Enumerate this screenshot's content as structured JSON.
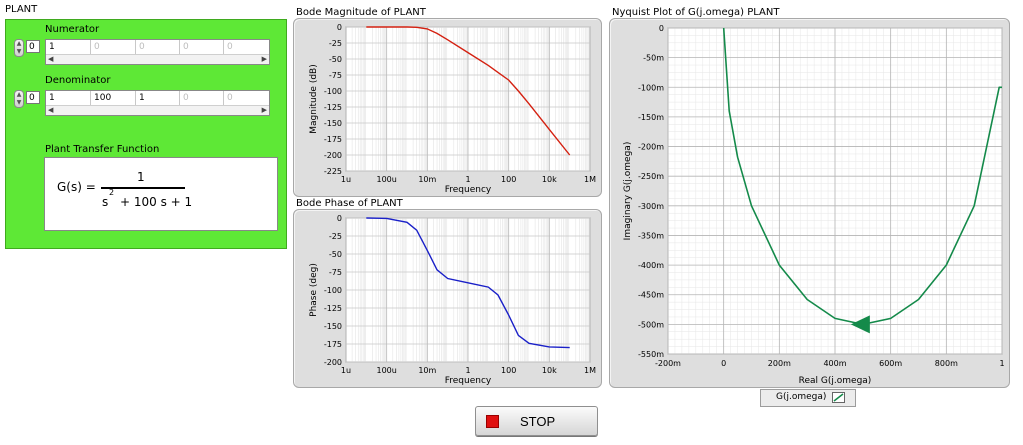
{
  "plant": {
    "title": "PLANT",
    "numerator_label": "Numerator",
    "numerator_index": "0",
    "numerator_values": [
      "1",
      "0",
      "0",
      "0",
      "0"
    ],
    "denominator_label": "Denominator",
    "denominator_index": "0",
    "denominator_values": [
      "1",
      "100",
      "1",
      "0",
      "0"
    ],
    "tf_label": "Plant Transfer Function",
    "tf_lhs": "G(s) =",
    "tf_numerator": "1",
    "tf_den_s": "s",
    "tf_den_exp": "2",
    "tf_den_rest": "+ 100 s + 1"
  },
  "stop_button": {
    "label": "STOP",
    "indicator_color": "#e01010"
  },
  "colors": {
    "panel_green": "#5ee836",
    "magnitude": "#d42010",
    "phase": "#1a20c8",
    "nyquist": "#148a4a"
  },
  "chart_data": [
    {
      "type": "line",
      "title": "Bode Magnitude of PLANT",
      "xlabel": "Frequency",
      "ylabel": "Magnitude (dB)",
      "xscale": "log",
      "xticklabels": [
        "1u",
        "100u",
        "10m",
        "1",
        "100",
        "10k",
        "1M"
      ],
      "yticklabels": [
        "0",
        "-25",
        "-50",
        "-75",
        "-100",
        "-125",
        "-150",
        "-175",
        "-200",
        "-225"
      ],
      "xlim": [
        1e-06,
        1000000.0
      ],
      "ylim": [
        -225,
        0
      ],
      "grid": true,
      "series": [
        {
          "x": [
            1e-05,
            0.0001,
            0.001,
            0.003,
            0.01,
            0.03,
            0.1,
            1,
            10,
            30,
            100,
            300,
            1000,
            10000.0,
            100000.0
          ],
          "y": [
            0,
            0,
            0,
            -0.4,
            -3,
            -10,
            -20,
            -40,
            -60,
            -71,
            -83,
            -100,
            -120,
            -160,
            -200
          ]
        }
      ]
    },
    {
      "type": "line",
      "title": "Bode Phase of PLANT",
      "xlabel": "Frequency",
      "ylabel": "Phase (deg)",
      "xscale": "log",
      "xticklabels": [
        "1u",
        "100u",
        "10m",
        "1",
        "100",
        "10k",
        "1M"
      ],
      "yticklabels": [
        "0",
        "-25",
        "-50",
        "-75",
        "-100",
        "-125",
        "-150",
        "-175",
        "-200"
      ],
      "xlim": [
        1e-06,
        1000000.0
      ],
      "ylim": [
        -200,
        0
      ],
      "grid": true,
      "series": [
        {
          "x": [
            1e-05,
            0.0001,
            0.001,
            0.003,
            0.01,
            0.03,
            0.1,
            1,
            10,
            30,
            100,
            300,
            1000,
            10000.0,
            100000.0
          ],
          "y": [
            0,
            -0.6,
            -6,
            -17,
            -45,
            -72,
            -84,
            -90,
            -96,
            -107,
            -135,
            -163,
            -174,
            -179,
            -180
          ]
        }
      ]
    },
    {
      "type": "line",
      "title": "Nyquist Plot of G(j.omega) PLANT",
      "xlabel": "Real G(j.omega)",
      "ylabel": "Imaginary G(j.omega)",
      "xticklabels": [
        "-200m",
        "0",
        "200m",
        "400m",
        "600m",
        "800m",
        "1"
      ],
      "yticklabels": [
        "0",
        "-50m",
        "-100m",
        "-150m",
        "-200m",
        "-250m",
        "-300m",
        "-350m",
        "-400m",
        "-450m",
        "-500m",
        "-550m"
      ],
      "xlim": [
        -0.2,
        1
      ],
      "ylim": [
        -0.55,
        0
      ],
      "grid": true,
      "legend": [
        "G(j.omega)"
      ],
      "series": [
        {
          "name": "G(j.omega)",
          "x": [
            1,
            0.99,
            0.9,
            0.8,
            0.7,
            0.6,
            0.5,
            0.4,
            0.3,
            0.2,
            0.1,
            0.05,
            0.02,
            0
          ],
          "y": [
            -0.1,
            -0.1,
            -0.3,
            -0.4,
            -0.458,
            -0.49,
            -0.5,
            -0.49,
            -0.458,
            -0.4,
            -0.3,
            -0.218,
            -0.14,
            0
          ]
        }
      ]
    }
  ]
}
